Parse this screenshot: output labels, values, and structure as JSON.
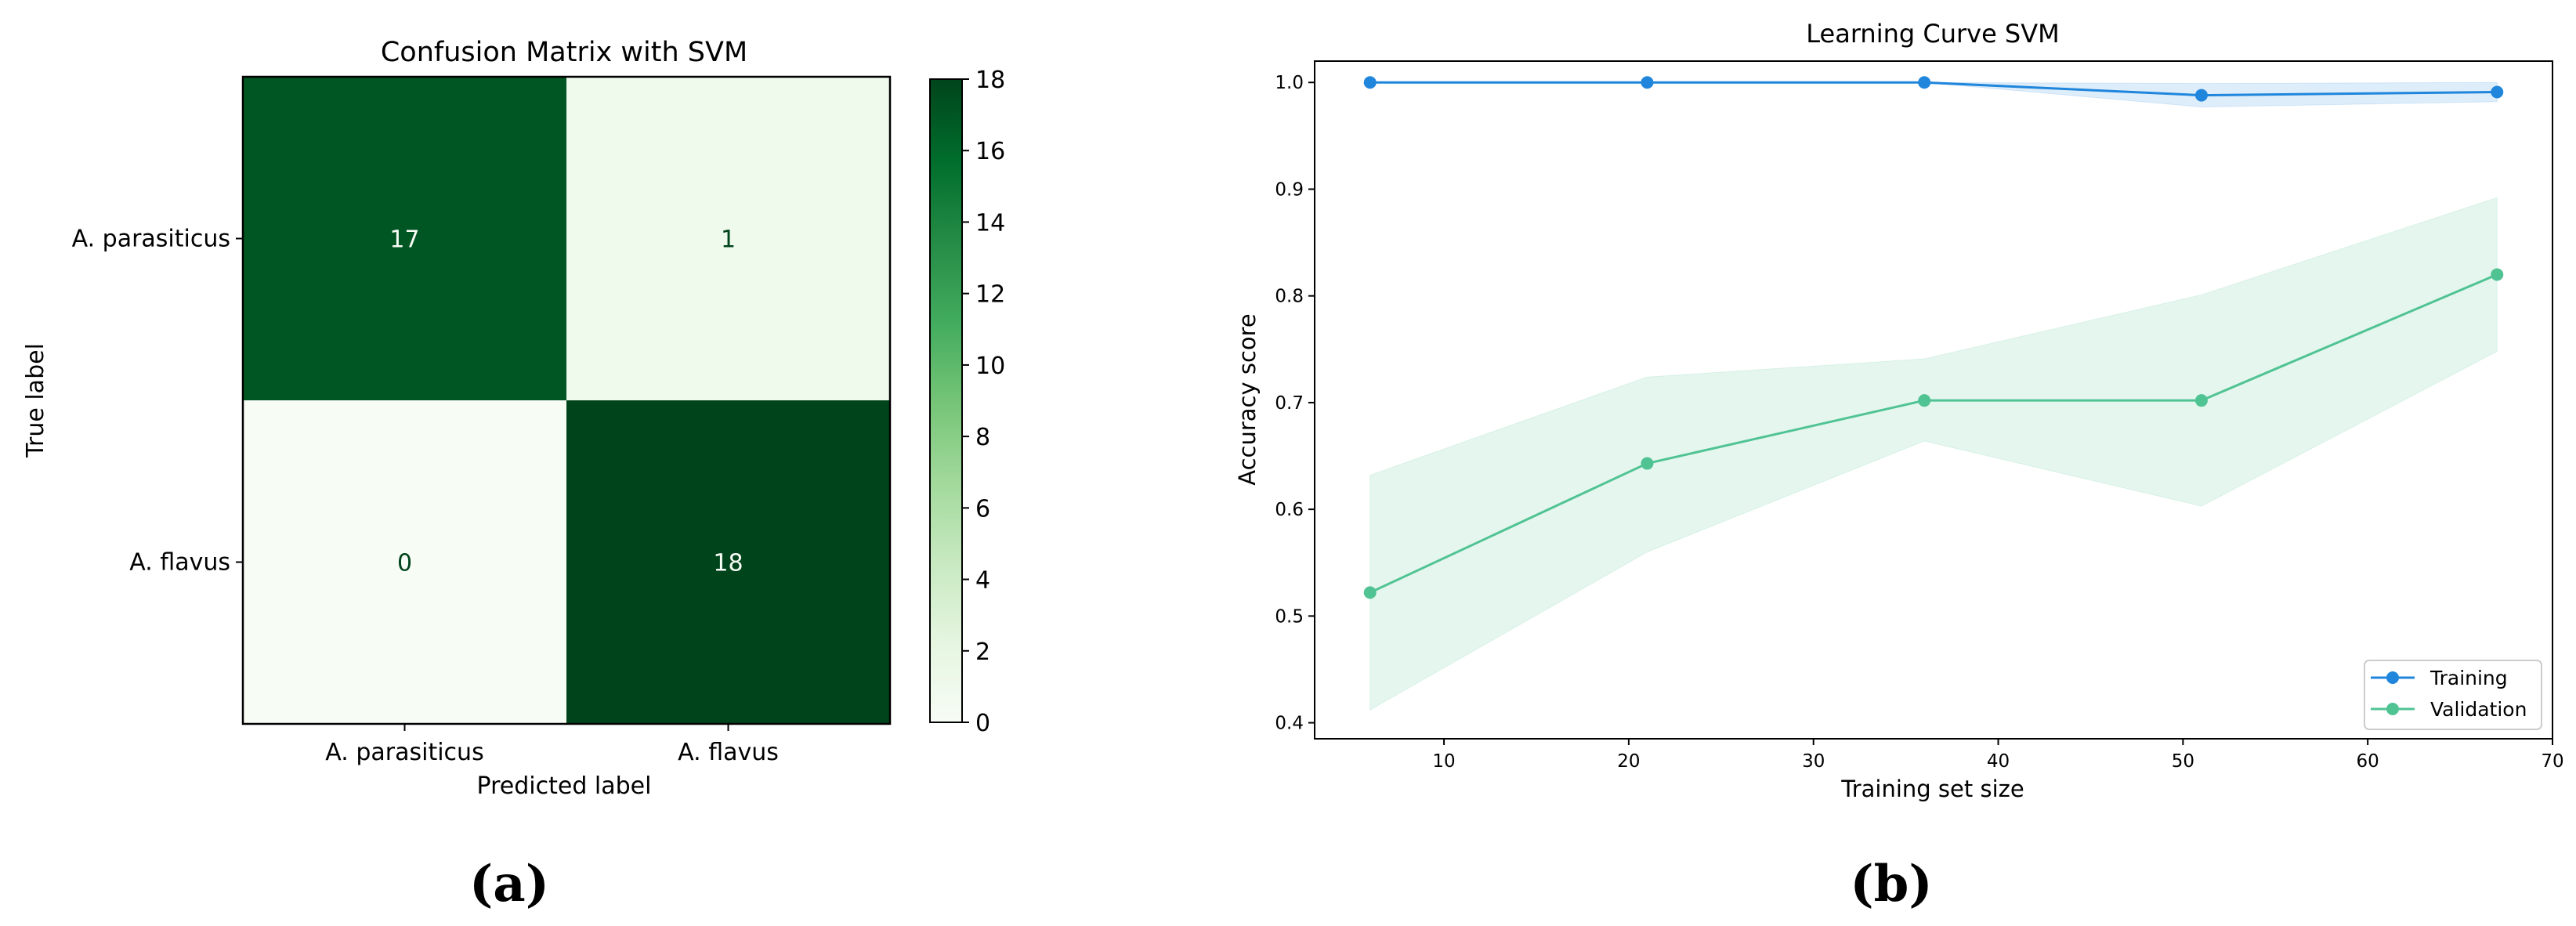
{
  "chart_data": [
    {
      "type": "heatmap",
      "title": "Confusion Matrix with SVM",
      "xlabel": "Predicted label",
      "ylabel": "True label",
      "row_labels": [
        "A. parasiticus",
        "A. flavus"
      ],
      "col_labels": [
        "A. parasiticus",
        "A. flavus"
      ],
      "values": [
        [
          17,
          1
        ],
        [
          0,
          18
        ]
      ],
      "colorbar": {
        "min": 0,
        "max": 18,
        "ticks": [
          0,
          2,
          4,
          6,
          8,
          10,
          12,
          14,
          16,
          18
        ]
      },
      "colormap": {
        "low": "#f7fcf5",
        "mid": "#74c476",
        "high": "#00441b"
      },
      "caption": "(a)"
    },
    {
      "type": "line",
      "title": "Learning Curve SVM",
      "xlabel": "Training set size",
      "ylabel": "Accuracy score",
      "xlim": [
        3,
        70
      ],
      "ylim": [
        0.385,
        1.02
      ],
      "xticks": [
        10,
        20,
        30,
        40,
        50,
        60,
        70
      ],
      "yticks": [
        0.4,
        0.5,
        0.6,
        0.7,
        0.8,
        0.9,
        1.0
      ],
      "x": [
        6,
        21,
        36,
        51,
        67
      ],
      "series": [
        {
          "name": "Training",
          "color": "#1f86dc",
          "values": [
            1.0,
            1.0,
            1.0,
            0.988,
            0.991
          ],
          "band_lower": [
            1.0,
            1.0,
            1.0,
            0.977,
            0.982
          ],
          "band_upper": [
            1.0,
            1.0,
            1.0,
            0.999,
            1.0
          ]
        },
        {
          "name": "Validation",
          "color": "#50c393",
          "values": [
            0.522,
            0.643,
            0.702,
            0.702,
            0.82
          ],
          "band_lower": [
            0.412,
            0.56,
            0.664,
            0.603,
            0.748
          ],
          "band_upper": [
            0.632,
            0.724,
            0.741,
            0.801,
            0.892
          ]
        }
      ],
      "legend": "lower-right",
      "caption": "(b)"
    }
  ]
}
